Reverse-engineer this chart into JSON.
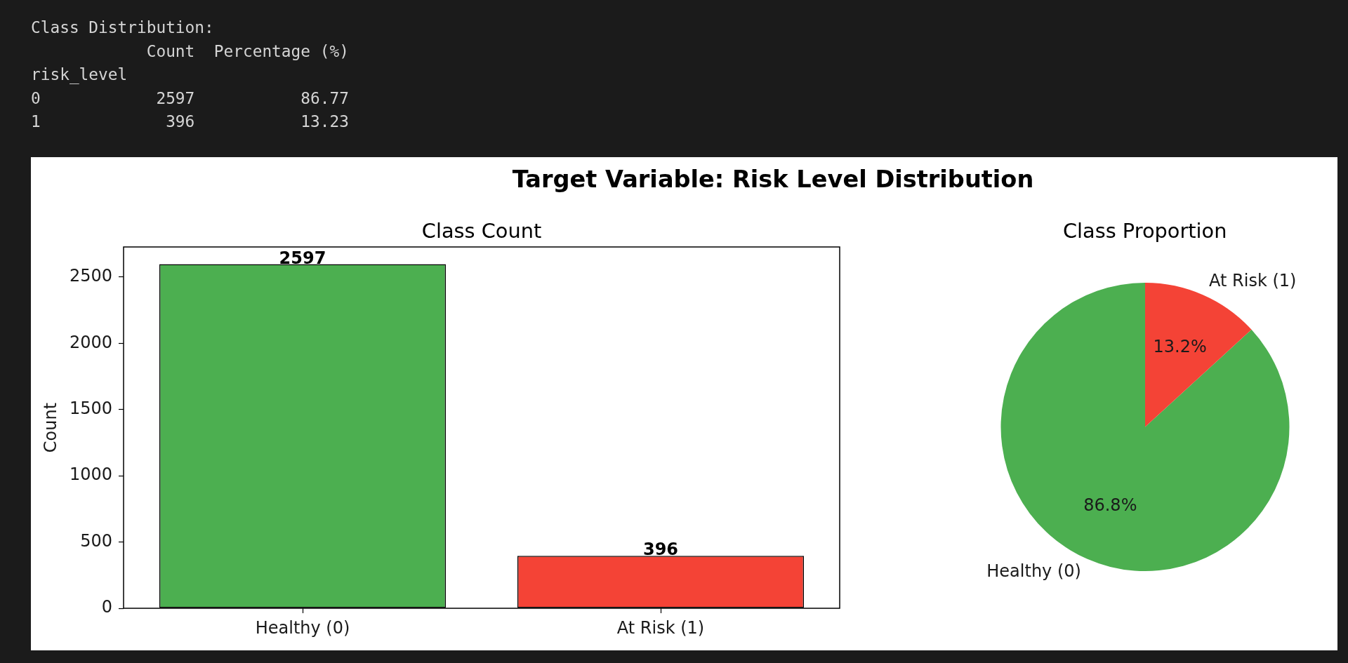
{
  "chart_data": [
    {
      "type": "other",
      "title": "Class Distribution:",
      "annotations": [
        "            Count  Percentage (%)",
        "risk_level",
        "0            2597           86.77",
        "1             396           13.23"
      ]
    },
    {
      "type": "bar",
      "title": "Target Variable: Risk Level Distribution",
      "subtitle": "Class Count",
      "ylabel": "Count",
      "categories": [
        "Healthy (0)",
        "At Risk (1)"
      ],
      "values": [
        2597,
        396
      ],
      "colors": [
        "#4caf50",
        "#f44336"
      ],
      "ylim": [
        0,
        2727
      ],
      "yticks": [
        0,
        500,
        1000,
        1500,
        2000,
        2500
      ],
      "data_labels": true
    },
    {
      "type": "pie",
      "title": "Class Proportion",
      "categories": [
        "Healthy (0)",
        "At Risk (1)"
      ],
      "values": [
        86.8,
        13.2
      ],
      "colors": [
        "#4caf50",
        "#f44336"
      ],
      "value_labels": [
        "86.8%",
        "13.2%"
      ]
    }
  ]
}
